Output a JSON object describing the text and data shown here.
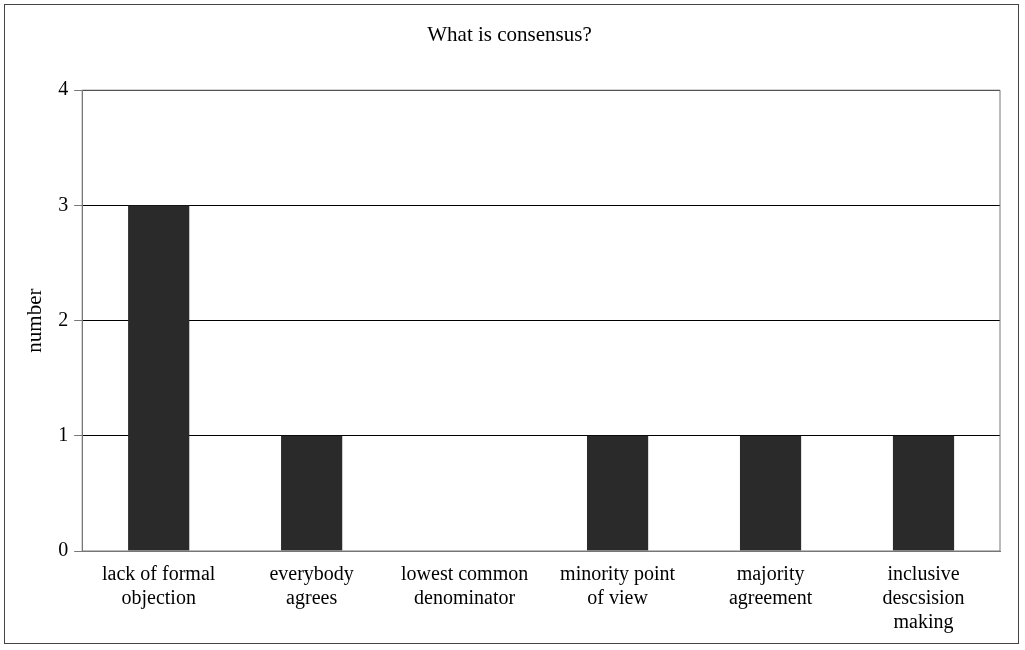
{
  "chart_data": {
    "type": "bar",
    "title": "What is consensus?",
    "ylabel": "number",
    "categories": [
      "lack of formal objection",
      "everybody agrees",
      "lowest common denominator",
      "minority point of view",
      "majority agreement",
      "inclusive descsision making"
    ],
    "values": [
      3,
      1,
      0,
      1,
      1,
      1
    ],
    "color": "#2a2a2a",
    "ylim": [
      0,
      4
    ],
    "yticks": [
      0,
      1,
      2,
      3,
      4
    ],
    "grid": "y",
    "legend": false
  }
}
